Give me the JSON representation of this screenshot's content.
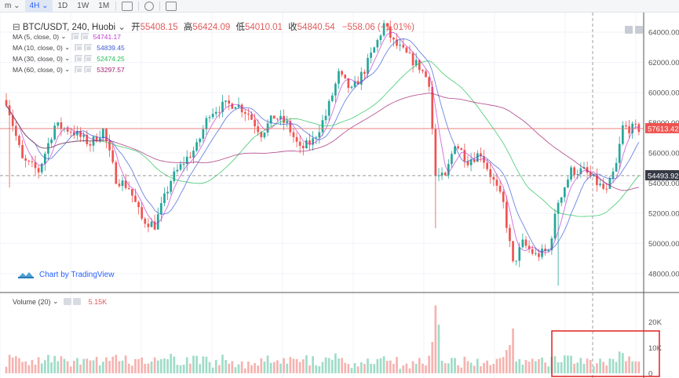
{
  "toolbar": {
    "items": [
      "m",
      "4H",
      "1D",
      "1W",
      "1M"
    ],
    "active": "4H"
  },
  "legend": {
    "symbol": "BTC/USDT, 240, Huobi",
    "open_label": "开",
    "open": "55408.15",
    "high_label": "高",
    "high": "56424.09",
    "low_label": "低",
    "low": "54010.01",
    "close_label": "收",
    "close": "54840.54",
    "change": "−558.06 (−1.01%)"
  },
  "ma_indicators": [
    {
      "label": "MA (5, close, 0)",
      "value": "54741.17",
      "color": "#c43ad4"
    },
    {
      "label": "MA (10, close, 0)",
      "value": "54839.45",
      "color": "#3b5bd6"
    },
    {
      "label": "MA (30, close, 0)",
      "value": "52474.25",
      "color": "#1fbf54"
    },
    {
      "label": "MA (60, close, 0)",
      "value": "53297.57",
      "color": "#a02070"
    }
  ],
  "branding": "Chart by TradingView",
  "volume_legend": {
    "label": "Volume (20)",
    "value": "5.15K"
  },
  "price_labels": {
    "last": "57613.42",
    "crosshair": "54493.92"
  },
  "colors": {
    "up": "#26a69a",
    "down": "#ef5350",
    "up_vol": "#9fdcc8",
    "down_vol": "#f5b3b0",
    "highlight_box": "#e02020"
  },
  "chart_data": {
    "type": "candlestick",
    "price_axis": {
      "ticks": [
        48000,
        50000,
        52000,
        54000,
        56000,
        58000,
        60000,
        62000,
        64000
      ],
      "tick_labels": [
        "48000.00",
        "50000.00",
        "52000.00",
        "54000.00",
        "56000.00",
        "58000.00",
        "60000.00",
        "62000.00",
        "64000.00"
      ],
      "range": [
        46800,
        65300
      ]
    },
    "volume_axis": {
      "ticks": [
        0,
        10000,
        20000
      ],
      "tick_labels": [
        "0",
        "10K",
        "20K"
      ],
      "range": [
        0,
        30000
      ]
    },
    "price_control_points": [
      {
        "i": 0,
        "p": 59500
      },
      {
        "i": 5,
        "p": 55500
      },
      {
        "i": 10,
        "p": 54800
      },
      {
        "i": 15,
        "p": 57800
      },
      {
        "i": 20,
        "p": 57500
      },
      {
        "i": 26,
        "p": 56600
      },
      {
        "i": 30,
        "p": 57500
      },
      {
        "i": 34,
        "p": 54300
      },
      {
        "i": 38,
        "p": 53700
      },
      {
        "i": 42,
        "p": 51600
      },
      {
        "i": 46,
        "p": 51200
      },
      {
        "i": 51,
        "p": 54200
      },
      {
        "i": 55,
        "p": 55400
      },
      {
        "i": 59,
        "p": 56400
      },
      {
        "i": 63,
        "p": 58700
      },
      {
        "i": 67,
        "p": 59100
      },
      {
        "i": 71,
        "p": 59300
      },
      {
        "i": 75,
        "p": 58600
      },
      {
        "i": 79,
        "p": 57300
      },
      {
        "i": 83,
        "p": 58400
      },
      {
        "i": 87,
        "p": 57900
      },
      {
        "i": 91,
        "p": 56200
      },
      {
        "i": 95,
        "p": 56800
      },
      {
        "i": 99,
        "p": 58500
      },
      {
        "i": 103,
        "p": 61200
      },
      {
        "i": 107,
        "p": 60100
      },
      {
        "i": 111,
        "p": 61500
      },
      {
        "i": 115,
        "p": 63400
      },
      {
        "i": 117,
        "p": 64500
      },
      {
        "i": 120,
        "p": 63300
      },
      {
        "i": 124,
        "p": 62500
      },
      {
        "i": 128,
        "p": 61700
      },
      {
        "i": 131,
        "p": 60700
      },
      {
        "i": 133,
        "p": 54500
      },
      {
        "i": 136,
        "p": 54300
      },
      {
        "i": 139,
        "p": 56700
      },
      {
        "i": 143,
        "p": 55500
      },
      {
        "i": 147,
        "p": 56000
      },
      {
        "i": 151,
        "p": 54100
      },
      {
        "i": 154,
        "p": 52600
      },
      {
        "i": 157,
        "p": 48600
      },
      {
        "i": 160,
        "p": 50000
      },
      {
        "i": 164,
        "p": 49200
      },
      {
        "i": 168,
        "p": 49500
      },
      {
        "i": 171,
        "p": 52800
      },
      {
        "i": 175,
        "p": 54800
      },
      {
        "i": 179,
        "p": 54800
      },
      {
        "i": 183,
        "p": 54000
      },
      {
        "i": 186,
        "p": 53400
      },
      {
        "i": 189,
        "p": 55200
      },
      {
        "i": 191,
        "p": 57700
      },
      {
        "i": 194,
        "p": 57600
      },
      {
        "i": 196,
        "p": 57600
      }
    ],
    "candle_count": 197,
    "last_price": 57613.42,
    "crosshair_price": 54493.92
  }
}
